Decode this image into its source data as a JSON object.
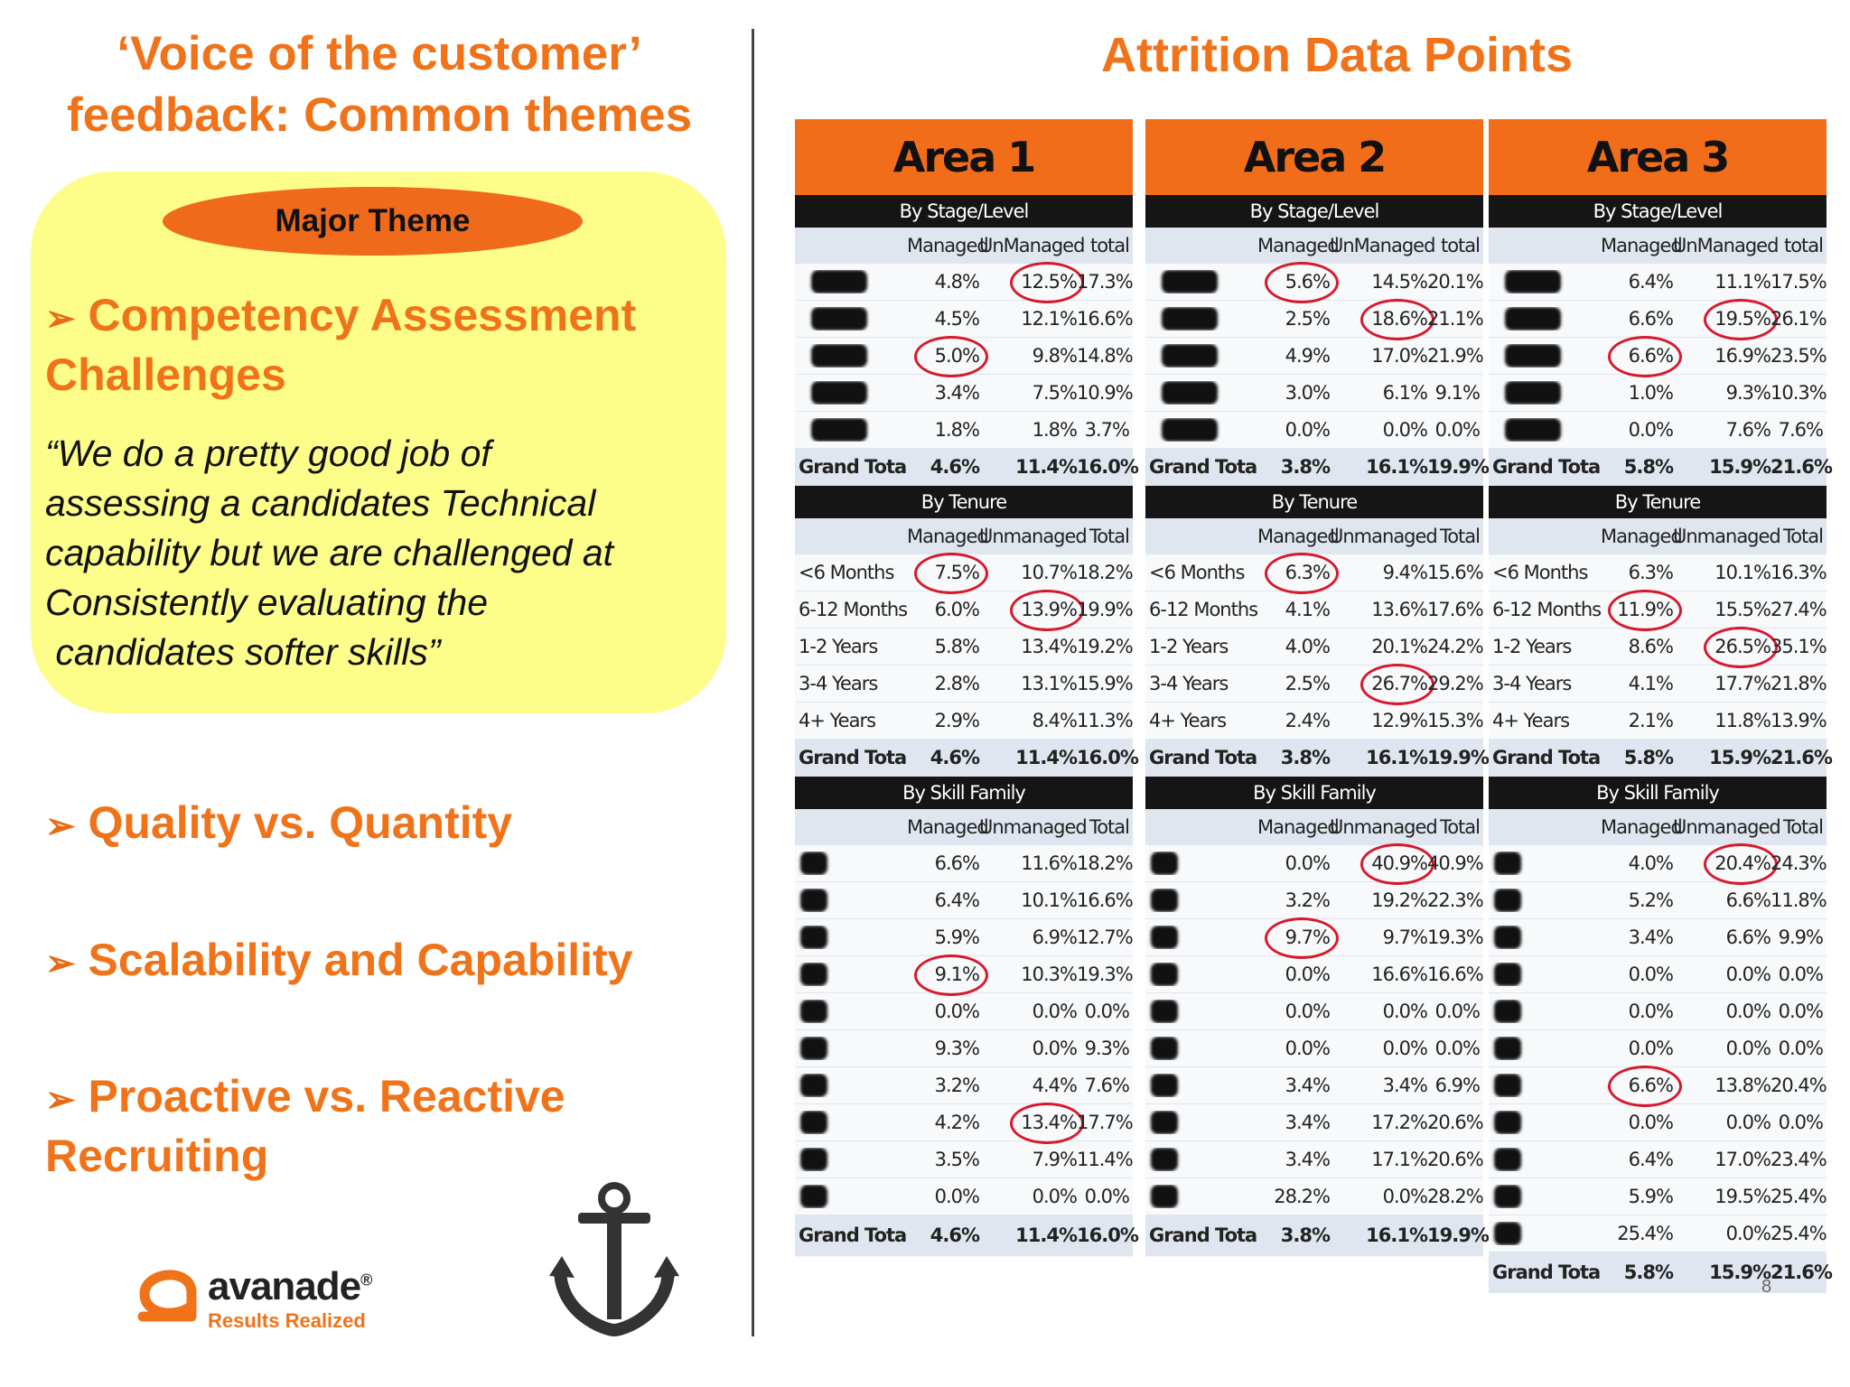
{
  "left": {
    "title_line1": "‘Voice of the customer’",
    "title_line2": "feedback: Common themes",
    "theme_label": "Major Theme",
    "theme_bullet": "Competency Assessment Challenges",
    "quote_lines": [
      "“We do a pretty good job of",
      "assessing a candidates Technical",
      "capability but we are challenged at",
      "Consistently evaluating the",
      " candidates softer skills”"
    ],
    "bullets": [
      "Quality vs. Quantity",
      "Scalability and Capability",
      "Proactive vs. Reactive Recruiting"
    ],
    "logo_word": "avanade",
    "logo_registered": "®",
    "logo_tagline": "Results Realized"
  },
  "right": {
    "title": "Attrition Data Points",
    "page_number": "8",
    "areas": [
      {
        "name": "Area 1",
        "sections": [
          {
            "title": "By Stage/Level",
            "cols": [
              "Managed",
              "UnManaged",
              "total"
            ],
            "rows": [
              {
                "label": "",
                "vals": [
                  "4.8%",
                  "12.5%",
                  "17.3%"
                ],
                "circle": 1
              },
              {
                "label": "",
                "vals": [
                  "4.5%",
                  "12.1%",
                  "16.6%"
                ]
              },
              {
                "label": "",
                "vals": [
                  "5.0%",
                  "9.8%",
                  "14.8%"
                ],
                "circle": 0
              },
              {
                "label": "",
                "vals": [
                  "3.4%",
                  "7.5%",
                  "10.9%"
                ]
              },
              {
                "label": "",
                "vals": [
                  "1.8%",
                  "1.8%",
                  "3.7%"
                ]
              }
            ],
            "total": {
              "label": "Grand Total",
              "vals": [
                "4.6%",
                "11.4%",
                "16.0%"
              ]
            }
          },
          {
            "title": "By Tenure",
            "cols": [
              "Managed",
              "Unmanaged",
              "Total"
            ],
            "rows": [
              {
                "label": "<6 Months",
                "vals": [
                  "7.5%",
                  "10.7%",
                  "18.2%"
                ],
                "circle": 0
              },
              {
                "label": "6-12 Months",
                "vals": [
                  "6.0%",
                  "13.9%",
                  "19.9%"
                ],
                "circle": 1
              },
              {
                "label": "1-2 Years",
                "vals": [
                  "5.8%",
                  "13.4%",
                  "19.2%"
                ]
              },
              {
                "label": "3-4 Years",
                "vals": [
                  "2.8%",
                  "13.1%",
                  "15.9%"
                ]
              },
              {
                "label": "4+ Years",
                "vals": [
                  "2.9%",
                  "8.4%",
                  "11.3%"
                ]
              }
            ],
            "total": {
              "label": "Grand Total",
              "vals": [
                "4.6%",
                "11.4%",
                "16.0%"
              ]
            }
          },
          {
            "title": "By Skill Family",
            "cols": [
              "Managed",
              "Unmanaged",
              "Total"
            ],
            "rows": [
              {
                "label": "",
                "vals": [
                  "6.6%",
                  "11.6%",
                  "18.2%"
                ]
              },
              {
                "label": "",
                "vals": [
                  "6.4%",
                  "10.1%",
                  "16.6%"
                ]
              },
              {
                "label": "",
                "vals": [
                  "5.9%",
                  "6.9%",
                  "12.7%"
                ]
              },
              {
                "label": "",
                "vals": [
                  "9.1%",
                  "10.3%",
                  "19.3%"
                ],
                "circle": 0
              },
              {
                "label": "",
                "vals": [
                  "0.0%",
                  "0.0%",
                  "0.0%"
                ]
              },
              {
                "label": "",
                "vals": [
                  "9.3%",
                  "0.0%",
                  "9.3%"
                ]
              },
              {
                "label": "",
                "vals": [
                  "3.2%",
                  "4.4%",
                  "7.6%"
                ]
              },
              {
                "label": "",
                "vals": [
                  "4.2%",
                  "13.4%",
                  "17.7%"
                ],
                "circle": 1
              },
              {
                "label": "",
                "vals": [
                  "3.5%",
                  "7.9%",
                  "11.4%"
                ]
              },
              {
                "label": "",
                "vals": [
                  "0.0%",
                  "0.0%",
                  "0.0%"
                ]
              }
            ],
            "total": {
              "label": "Grand Total",
              "vals": [
                "4.6%",
                "11.4%",
                "16.0%"
              ]
            }
          }
        ]
      },
      {
        "name": "Area 2",
        "sections": [
          {
            "title": "By Stage/Level",
            "cols": [
              "Managed",
              "UnManaged",
              "total"
            ],
            "rows": [
              {
                "label": "",
                "vals": [
                  "5.6%",
                  "14.5%",
                  "20.1%"
                ],
                "circle": 0
              },
              {
                "label": "",
                "vals": [
                  "2.5%",
                  "18.6%",
                  "21.1%"
                ],
                "circle": 1
              },
              {
                "label": "",
                "vals": [
                  "4.9%",
                  "17.0%",
                  "21.9%"
                ]
              },
              {
                "label": "",
                "vals": [
                  "3.0%",
                  "6.1%",
                  "9.1%"
                ]
              },
              {
                "label": "",
                "vals": [
                  "0.0%",
                  "0.0%",
                  "0.0%"
                ]
              }
            ],
            "total": {
              "label": "Grand Total",
              "vals": [
                "3.8%",
                "16.1%",
                "19.9%"
              ]
            }
          },
          {
            "title": "By Tenure",
            "cols": [
              "Managed",
              "Unmanaged",
              "Total"
            ],
            "rows": [
              {
                "label": "<6 Months",
                "vals": [
                  "6.3%",
                  "9.4%",
                  "15.6%"
                ],
                "circle": 0
              },
              {
                "label": "6-12 Months",
                "vals": [
                  "4.1%",
                  "13.6%",
                  "17.6%"
                ]
              },
              {
                "label": "1-2 Years",
                "vals": [
                  "4.0%",
                  "20.1%",
                  "24.2%"
                ]
              },
              {
                "label": "3-4 Years",
                "vals": [
                  "2.5%",
                  "26.7%",
                  "29.2%"
                ],
                "circle": 1
              },
              {
                "label": "4+ Years",
                "vals": [
                  "2.4%",
                  "12.9%",
                  "15.3%"
                ]
              }
            ],
            "total": {
              "label": "Grand Total",
              "vals": [
                "3.8%",
                "16.1%",
                "19.9%"
              ]
            }
          },
          {
            "title": "By Skill Family",
            "cols": [
              "Managed",
              "Unmanaged",
              "Total"
            ],
            "rows": [
              {
                "label": "",
                "vals": [
                  "0.0%",
                  "40.9%",
                  "40.9%"
                ],
                "circle": 1
              },
              {
                "label": "",
                "vals": [
                  "3.2%",
                  "19.2%",
                  "22.3%"
                ]
              },
              {
                "label": "",
                "vals": [
                  "9.7%",
                  "9.7%",
                  "19.3%"
                ],
                "circle": 0
              },
              {
                "label": "",
                "vals": [
                  "0.0%",
                  "16.6%",
                  "16.6%"
                ]
              },
              {
                "label": "",
                "vals": [
                  "0.0%",
                  "0.0%",
                  "0.0%"
                ]
              },
              {
                "label": "",
                "vals": [
                  "0.0%",
                  "0.0%",
                  "0.0%"
                ]
              },
              {
                "label": "",
                "vals": [
                  "3.4%",
                  "3.4%",
                  "6.9%"
                ]
              },
              {
                "label": "",
                "vals": [
                  "3.4%",
                  "17.2%",
                  "20.6%"
                ]
              },
              {
                "label": "",
                "vals": [
                  "3.4%",
                  "17.1%",
                  "20.6%"
                ]
              },
              {
                "label": "",
                "vals": [
                  "28.2%",
                  "0.0%",
                  "28.2%"
                ]
              }
            ],
            "total": {
              "label": "Grand Total",
              "vals": [
                "3.8%",
                "16.1%",
                "19.9%"
              ]
            }
          }
        ]
      },
      {
        "name": "Area 3",
        "sections": [
          {
            "title": "By Stage/Level",
            "cols": [
              "Managed",
              "UnManaged",
              "total"
            ],
            "rows": [
              {
                "label": "",
                "vals": [
                  "6.4%",
                  "11.1%",
                  "17.5%"
                ]
              },
              {
                "label": "",
                "vals": [
                  "6.6%",
                  "19.5%",
                  "26.1%"
                ],
                "circle": 1
              },
              {
                "label": "",
                "vals": [
                  "6.6%",
                  "16.9%",
                  "23.5%"
                ],
                "circle": 0
              },
              {
                "label": "",
                "vals": [
                  "1.0%",
                  "9.3%",
                  "10.3%"
                ]
              },
              {
                "label": "",
                "vals": [
                  "0.0%",
                  "7.6%",
                  "7.6%"
                ]
              }
            ],
            "total": {
              "label": "Grand Total",
              "vals": [
                "5.8%",
                "15.9%",
                "21.6%"
              ]
            }
          },
          {
            "title": "By Tenure",
            "cols": [
              "Managed",
              "Unmanaged",
              "Total"
            ],
            "rows": [
              {
                "label": "<6 Months",
                "vals": [
                  "6.3%",
                  "10.1%",
                  "16.3%"
                ]
              },
              {
                "label": "6-12 Months",
                "vals": [
                  "11.9%",
                  "15.5%",
                  "27.4%"
                ],
                "circle": 0
              },
              {
                "label": "1-2 Years",
                "vals": [
                  "8.6%",
                  "26.5%",
                  "35.1%"
                ],
                "circle": 1
              },
              {
                "label": "3-4 Years",
                "vals": [
                  "4.1%",
                  "17.7%",
                  "21.8%"
                ]
              },
              {
                "label": "4+ Years",
                "vals": [
                  "2.1%",
                  "11.8%",
                  "13.9%"
                ]
              }
            ],
            "total": {
              "label": "Grand Total",
              "vals": [
                "5.8%",
                "15.9%",
                "21.6%"
              ]
            }
          },
          {
            "title": "By Skill Family",
            "cols": [
              "Managed",
              "Unmanaged",
              "Total"
            ],
            "rows": [
              {
                "label": "",
                "vals": [
                  "4.0%",
                  "20.4%",
                  "24.3%"
                ],
                "circle": 1
              },
              {
                "label": "",
                "vals": [
                  "5.2%",
                  "6.6%",
                  "11.8%"
                ]
              },
              {
                "label": "",
                "vals": [
                  "3.4%",
                  "6.6%",
                  "9.9%"
                ]
              },
              {
                "label": "",
                "vals": [
                  "0.0%",
                  "0.0%",
                  "0.0%"
                ]
              },
              {
                "label": "",
                "vals": [
                  "0.0%",
                  "0.0%",
                  "0.0%"
                ]
              },
              {
                "label": "",
                "vals": [
                  "0.0%",
                  "0.0%",
                  "0.0%"
                ]
              },
              {
                "label": "",
                "vals": [
                  "6.6%",
                  "13.8%",
                  "20.4%"
                ],
                "circle": 0
              },
              {
                "label": "",
                "vals": [
                  "0.0%",
                  "0.0%",
                  "0.0%"
                ]
              },
              {
                "label": "",
                "vals": [
                  "6.4%",
                  "17.0%",
                  "23.4%"
                ]
              },
              {
                "label": "",
                "vals": [
                  "5.9%",
                  "19.5%",
                  "25.4%"
                ]
              },
              {
                "label": "",
                "vals": [
                  "25.4%",
                  "0.0%",
                  "25.4%"
                ]
              }
            ],
            "total": {
              "label": "Grand Total",
              "vals": [
                "5.8%",
                "15.9%",
                "21.6%"
              ]
            }
          }
        ]
      }
    ]
  },
  "colors": {
    "accent": "#f0731a",
    "theme_box": "#fdfd8a",
    "circle": "#d7192d"
  }
}
